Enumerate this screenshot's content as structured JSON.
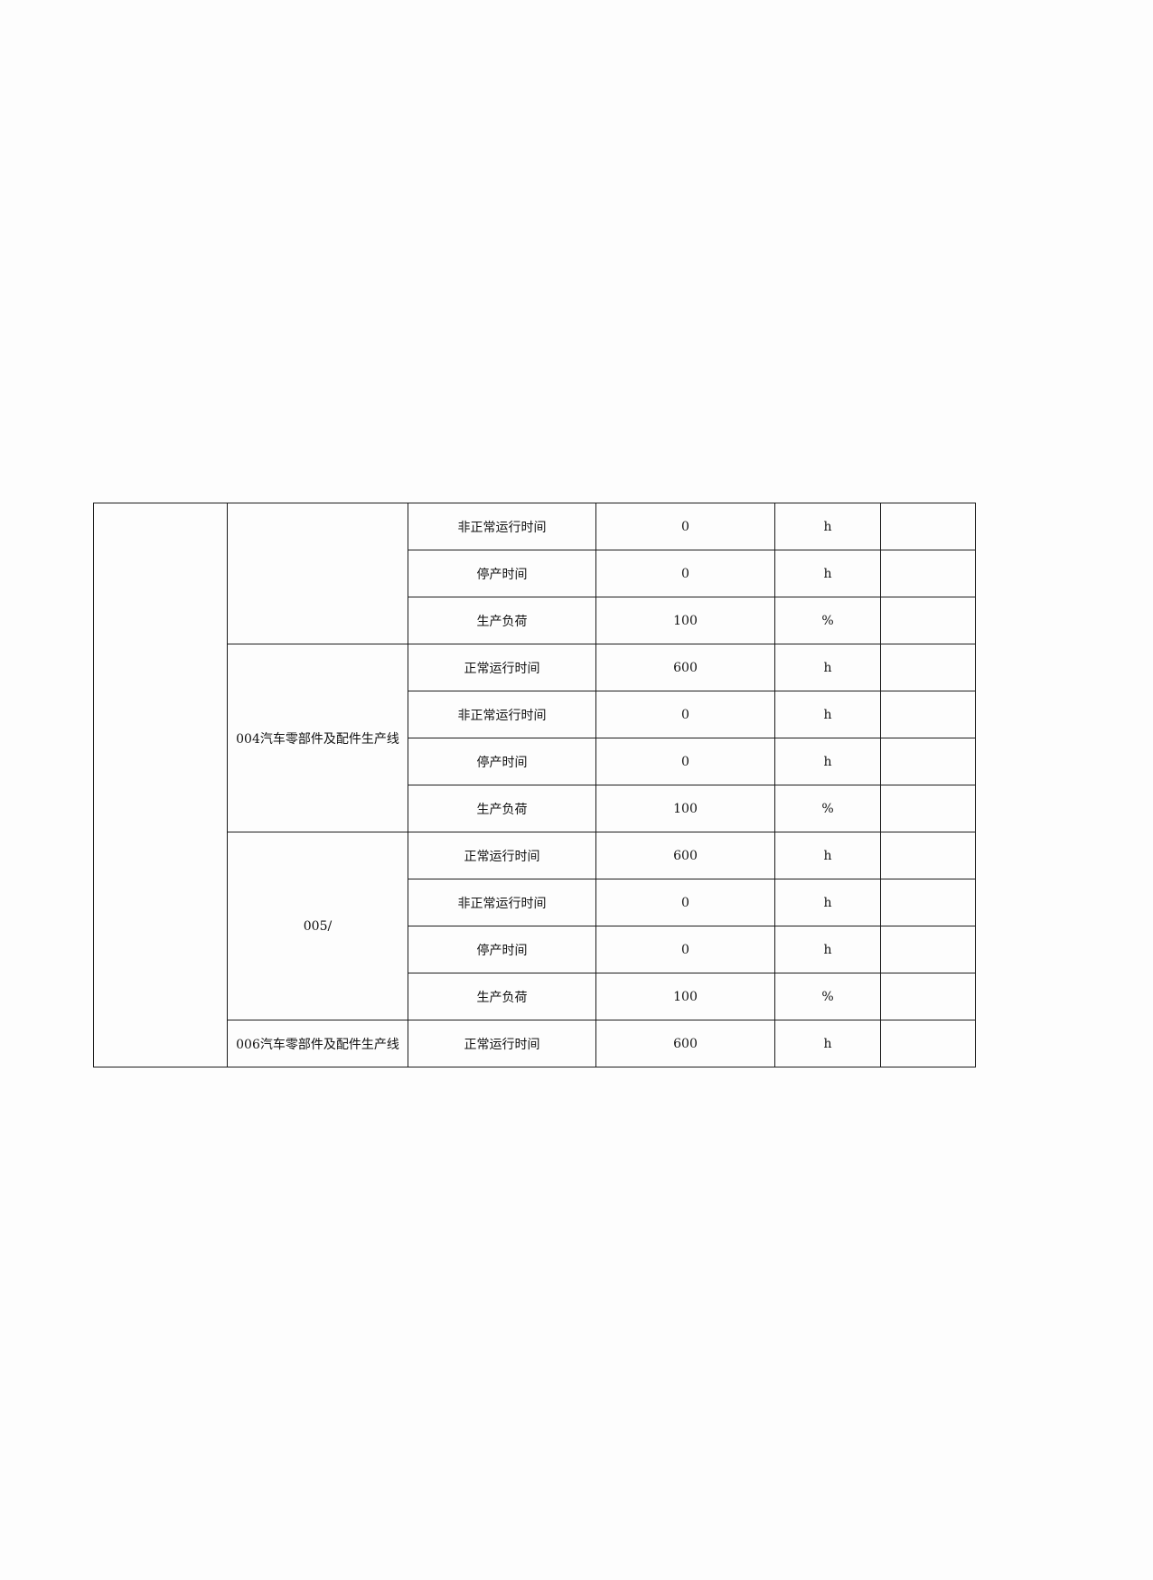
{
  "table": {
    "first_column": "",
    "groups": [
      {
        "name": "",
        "rows": [
          {
            "item": "非正常运行时间",
            "value": "0",
            "unit": "h",
            "note": ""
          },
          {
            "item": "停产时间",
            "value": "0",
            "unit": "h",
            "note": ""
          },
          {
            "item": "生产负荷",
            "value": "100",
            "unit": "%",
            "note": ""
          }
        ]
      },
      {
        "name": "004汽车零部件及配件生产线",
        "rows": [
          {
            "item": "正常运行时间",
            "value": "600",
            "unit": "h",
            "note": ""
          },
          {
            "item": "非正常运行时间",
            "value": "0",
            "unit": "h",
            "note": ""
          },
          {
            "item": "停产时间",
            "value": "0",
            "unit": "h",
            "note": ""
          },
          {
            "item": "生产负荷",
            "value": "100",
            "unit": "%",
            "note": ""
          }
        ]
      },
      {
        "name": "005/",
        "rows": [
          {
            "item": "正常运行时间",
            "value": "600",
            "unit": "h",
            "note": ""
          },
          {
            "item": "非正常运行时间",
            "value": "0",
            "unit": "h",
            "note": ""
          },
          {
            "item": "停产时间",
            "value": "0",
            "unit": "h",
            "note": ""
          },
          {
            "item": "生产负荷",
            "value": "100",
            "unit": "%",
            "note": ""
          }
        ]
      },
      {
        "name": "006汽车零部件及配件生产线",
        "rows": [
          {
            "item": "正常运行时间",
            "value": "600",
            "unit": "h",
            "note": ""
          }
        ]
      }
    ]
  }
}
